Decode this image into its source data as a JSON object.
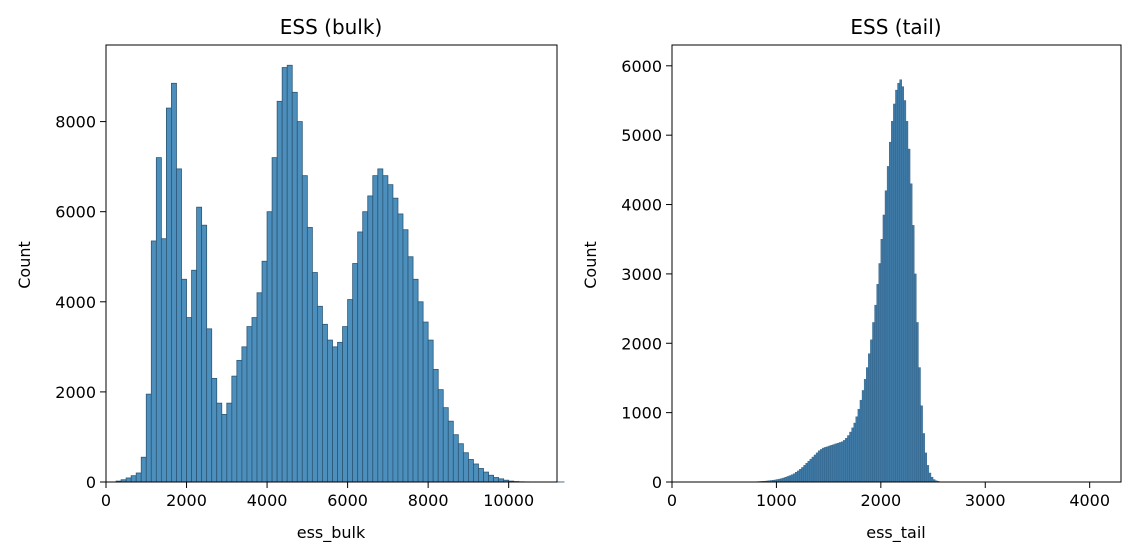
{
  "chart_data": [
    {
      "type": "bar",
      "title": "ESS (bulk)",
      "xlabel": "ess_bulk",
      "ylabel": "Count",
      "xlim": [
        0,
        11200
      ],
      "ylim": [
        0,
        9700
      ],
      "xticks": [
        "0",
        "2000",
        "4000",
        "6000",
        "8000",
        "10000"
      ],
      "yticks": [
        "0",
        "2000",
        "4000",
        "6000",
        "8000"
      ],
      "bin_start": 250,
      "bin_width": 125,
      "values": [
        20,
        50,
        90,
        140,
        200,
        550,
        1950,
        5350,
        7200,
        5400,
        8300,
        8850,
        6950,
        4500,
        3650,
        4700,
        6100,
        5700,
        3400,
        2300,
        1750,
        1500,
        1750,
        2350,
        2700,
        3000,
        3450,
        3650,
        4200,
        4900,
        6000,
        7200,
        8450,
        9200,
        9250,
        8650,
        8000,
        6800,
        5650,
        4650,
        3900,
        3500,
        3150,
        3000,
        3100,
        3450,
        4050,
        4850,
        5550,
        6000,
        6350,
        6800,
        6950,
        6800,
        6600,
        6300,
        5950,
        5600,
        5000,
        4500,
        4000,
        3550,
        3150,
        2500,
        2050,
        1650,
        1350,
        1050,
        850,
        650,
        500,
        400,
        300,
        220,
        150,
        100,
        70,
        40,
        20,
        10,
        5,
        3,
        2,
        2,
        1,
        1,
        1,
        1,
        1
      ]
    },
    {
      "type": "bar",
      "title": "ESS (tail)",
      "xlabel": "ess_tail",
      "ylabel": "Count",
      "xlim": [
        0,
        4300
      ],
      "ylim": [
        0,
        6300
      ],
      "xticks": [
        "0",
        "1000",
        "2000",
        "3000",
        "4000"
      ],
      "yticks": [
        "0",
        "1000",
        "2000",
        "3000",
        "4000",
        "5000",
        "6000"
      ],
      "bin_start": 700,
      "bin_width": 20,
      "values": [
        2,
        2,
        3,
        3,
        4,
        5,
        6,
        8,
        10,
        12,
        15,
        18,
        22,
        26,
        30,
        36,
        42,
        50,
        58,
        68,
        80,
        92,
        105,
        120,
        140,
        160,
        185,
        210,
        240,
        270,
        300,
        330,
        360,
        390,
        420,
        450,
        470,
        490,
        500,
        510,
        520,
        530,
        540,
        550,
        560,
        570,
        580,
        600,
        630,
        670,
        720,
        780,
        850,
        940,
        1050,
        1180,
        1320,
        1480,
        1650,
        1850,
        2050,
        2300,
        2550,
        2850,
        3150,
        3500,
        3850,
        4200,
        4550,
        4900,
        5200,
        5450,
        5650,
        5750,
        5800,
        5700,
        5500,
        5200,
        4800,
        4300,
        3700,
        3000,
        2300,
        1650,
        1100,
        700,
        420,
        240,
        130,
        70,
        35,
        18,
        9,
        4,
        2,
        1
      ]
    }
  ]
}
